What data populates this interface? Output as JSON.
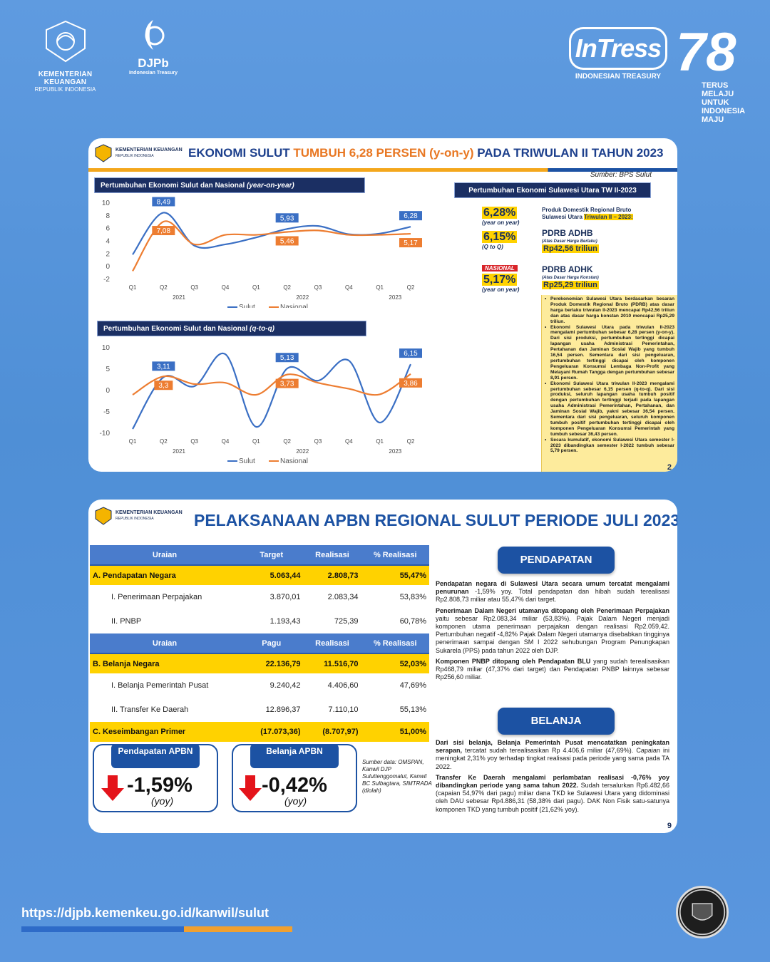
{
  "header": {
    "kemenkeu_line1": "KEMENTERIAN KEUANGAN",
    "kemenkeu_line2": "REPUBLIK INDONESIA",
    "djpb": "DJPb",
    "djpb_sub": "Indonesian Treasury",
    "intress": "InTress",
    "intress_sub": "INDONESIAN TREASURY",
    "ri_number": "78",
    "ri_tagline": [
      "TERUS",
      "MELAJU",
      "UNTUK",
      "INDONESIA",
      "MAJU"
    ]
  },
  "slide1": {
    "logo_line1": "KEMENTERIAN KEUANGAN",
    "logo_line2": "REPUBLIK INDONESIA",
    "title_a": "EKONOMI SULUT ",
    "title_b": "TUMBUH 6,28 PERSEN (y-on-y)",
    "title_c": " PADA TRIWULAN II TAHUN 2023",
    "source": "Sumber: BPS Sulut",
    "chart1_title_a": "Pertumbuhan Ekonomi Sulut dan Nasional ",
    "chart1_title_b": "(year-on-year)",
    "chart2_title_a": "Pertumbuhan Ekonomi Sulut dan Nasional ",
    "chart2_title_b": "(q-to-q)",
    "right_title": "Pertumbuhan Ekonomi Sulawesi Utara TW II-2023",
    "kpi1_value": "6,28%",
    "kpi1_sub": "(year on year)",
    "kpi2_value": "6,15%",
    "kpi2_sub": "(Q to Q)",
    "kpi3_tag": "NASIONAL",
    "kpi3_value": "5,17%",
    "kpi3_sub": "(year on year)",
    "pdrb_intro_a": "Produk Domestik Regional Bruto Sulawesi Utara ",
    "pdrb_intro_b": "Triwulan II – 2023:",
    "adhb_title": "PDRB ADHB",
    "adhb_note": "(Atas Dasar Harga Berlaku)",
    "adhb_value": "Rp42,56 triliun",
    "adhk_title": "PDRB ADHK",
    "adhk_note": "(Atas Dasar Harga Konstan)",
    "adhk_value": "Rp25,29 triliun",
    "bullets": [
      "Perekonomian Sulawesi Utara berdasarkan besaran Produk Domestik Regional Bruto (PDRB) atas dasar harga berlaku triwulan II-2023 mencapai Rp42,56 triliun dan atas dasar harga konstan 2010 mencapai Rp25,29 triliun.",
      "Ekonomi Sulawesi Utara pada triwulan II-2023 mengalami pertumbuhan sebesar 6,28 persen (y-on-y). Dari sisi produksi, pertumbuhan tertinggi dicapai lapangan usaha Administrasi Pemerintahan, Pertahanan dan Jaminan Sosial Wajib yang tumbuh 16,54 persen. Sementara dari sisi pengeluaran, pertumbuhan tertinggi dicapai oleh komponen Pengeluaran Konsumsi Lembaga Non-Profit yang Melayani Rumah Tangga dengan pertumbuhan sebesar 8,91 persen.",
      "Ekonomi Sulawesi Utara triwulan II-2023 mengalami pertumbuhan sebesar 6,15 persen (q-to-q). Dari sisi produksi, seluruh lapangan usaha tumbuh positif dengan pertumbuhan tertinggi terjadi pada lapangan usaha Administrasi Pemerintahan, Pertahanan, dan Jaminan Sosial Wajib, yakni sebesar 36,54 persen. Sementara dari sisi pengeluaran, seluruh komponen tumbuh positif pertumbuhan tertinggi dicapai oleh komponen Pengeluaran Konsumsi Pemerintah yang tumbuh sebesar 36,43 persen.",
      "Secara kumulatif, ekonomi Sulawesi Utara semester I-2023 dibandingkan semester I-2022 tumbuh sebesar 5,79 persen."
    ],
    "page": "2"
  },
  "chart_data": [
    {
      "type": "line",
      "title": "Pertumbuhan Ekonomi Sulut dan Nasional (year-on-year)",
      "categories": [
        "Q1",
        "Q2",
        "Q3",
        "Q4",
        "Q1",
        "Q2",
        "Q3",
        "Q4",
        "Q1",
        "Q2"
      ],
      "years": [
        "2021",
        "2022",
        "2023"
      ],
      "ylim": [
        -2,
        10
      ],
      "yticks": [
        10,
        8,
        6,
        4,
        2,
        0,
        -2
      ],
      "series": [
        {
          "name": "Sulut",
          "color": "#3a6fc4",
          "values": [
            1.9,
            8.49,
            3.3,
            3.5,
            4.6,
            5.93,
            6.4,
            5.1,
            5.2,
            6.28
          ],
          "labels": {
            "1": "8,49",
            "5": "5,93",
            "9": "6,28"
          }
        },
        {
          "name": "Nasional",
          "color": "#ed7d31",
          "values": [
            -0.7,
            7.08,
            3.5,
            5.0,
            5.0,
            5.46,
            5.7,
            5.0,
            5.0,
            5.17
          ],
          "labels": {
            "1": "7,08",
            "5": "5,46",
            "9": "5,17"
          }
        }
      ]
    },
    {
      "type": "line",
      "title": "Pertumbuhan Ekonomi Sulut dan Nasional (q-to-q)",
      "categories": [
        "Q1",
        "Q2",
        "Q3",
        "Q4",
        "Q1",
        "Q2",
        "Q3",
        "Q4",
        "Q1",
        "Q2"
      ],
      "years": [
        "2021",
        "2022",
        "2023"
      ],
      "ylim": [
        -10,
        10
      ],
      "yticks": [
        10,
        5,
        0,
        -5,
        -10
      ],
      "series": [
        {
          "name": "Sulut",
          "color": "#3a6fc4",
          "values": [
            -9,
            3.11,
            1.0,
            8.5,
            -8.5,
            5.13,
            2.3,
            7.0,
            -7.5,
            6.15
          ],
          "labels": {
            "1": "3,11",
            "5": "5,13",
            "9": "6,15"
          }
        },
        {
          "name": "Nasional",
          "color": "#ed7d31",
          "values": [
            -1.0,
            3.3,
            1.5,
            1.8,
            -1.0,
            3.73,
            1.8,
            0.4,
            -0.9,
            3.86
          ],
          "labels": {
            "1": "3,3",
            "5": "3,73",
            "9": "3,86"
          }
        }
      ]
    }
  ],
  "slide2": {
    "logo_line1": "KEMENTERIAN KEUANGAN",
    "logo_line2": "REPUBLIK INDONESIA",
    "title": "PELAKSANAAN APBN REGIONAL SULUT PERIODE JULI 2023",
    "table1_head": [
      "Uraian",
      "Target",
      "Realisasi",
      "% Realisasi"
    ],
    "rows1": [
      {
        "kind": "sec",
        "cells": [
          "A. Pendapatan Negara",
          "5.063,44",
          "2.808,73",
          "55,47%"
        ]
      },
      {
        "kind": "row",
        "cells": [
          "I. Penerimaan Perpajakan",
          "3.870,01",
          "2.083,34",
          "53,83%"
        ]
      },
      {
        "kind": "row",
        "cells": [
          "II. PNBP",
          "1.193,43",
          "725,39",
          "60,78%"
        ]
      }
    ],
    "table2_head": [
      "Uraian",
      "Pagu",
      "Realisasi",
      "% Realisasi"
    ],
    "rows2": [
      {
        "kind": "sec",
        "cells": [
          "B. Belanja Negara",
          "22.136,79",
          "11.516,70",
          "52,03%"
        ]
      },
      {
        "kind": "row",
        "cells": [
          "I. Belanja Pemerintah Pusat",
          "9.240,42",
          "4.406,60",
          "47,69%"
        ]
      },
      {
        "kind": "row",
        "cells": [
          "II. Transfer Ke Daerah",
          "12.896,37",
          "7.110,10",
          "55,13%"
        ]
      },
      {
        "kind": "sec",
        "cells": [
          "C. Keseimbangan Primer",
          "(17.073,36)",
          "(8.707,97)",
          "51,00%"
        ]
      }
    ],
    "stat1_label": "Pendapatan APBN",
    "stat1_value": "-1,59%",
    "stat1_yoy": "(yoy)",
    "stat2_label": "Belanja APBN",
    "stat2_value": "-0,42%",
    "stat2_yoy": "(yoy)",
    "source": "Sumber data: OMSPAN, Kanwil DJP Suluttenggomalut, Kanwil BC Sulbagtara, SIMTRADA (diolah)",
    "pendapatan_label": "PENDAPATAN",
    "belanja_label": "BELANJA",
    "p1_bold": "Pendapatan negara di Sulawesi Utara secara umum tercatat mengalami penurunan",
    "p1_rest": " -1,59% yoy. Total pendapatan dan hibah sudah terealisasi Rp2.808,73 miliar atau 55,47% dari target.",
    "p2_bold": "Penerimaan Dalam Negeri utamanya ditopang oleh Penerimaan Perpajakan",
    "p2_rest": " yaitu sebesar Rp2.083,34 miliar (53,83%). Pajak Dalam Negeri menjadi komponen utama penerimaan perpajakan dengan realisasi Rp2.059,42. Pertumbuhan negatif -4,82% Pajak Dalam Negeri utamanya disebabkan tingginya penerimaan sampai dengan SM I 2022 sehubungan Program Penungkapan Sukarela (PPS) pada tahun 2022 oleh DJP.",
    "p3_bold": "Komponen PNBP ditopang oleh Pendapatan BLU",
    "p3_rest": " yang sudah terealisasikan Rp468,79 miliar (47,37% dari target) dan Pendapatan PNBP lainnya sebesar Rp256,60 miliar.",
    "b1_bold": "Dari sisi belanja, Belanja Pemerintah Pusat mencatatkan peningkatan serapan,",
    "b1_rest": " tercatat sudah terealisasikan Rp 4.406,6 miliar (47,69%). Capaian ini meningkat 2,31% yoy terhadap tingkat realisasi pada periode yang sama pada TA 2022.",
    "b2_bold": "Transfer Ke Daerah mengalami perlambatan realisasi -0,76% yoy dibandingkan periode yang sama tahun 2022.",
    "b2_rest": " Sudah tersalurkan Rp6.482,66 (capaian 54,97% dari pagu) miliar dana TKD ke Sulawesi Utara yang didominasi oleh DAU sebesar Rp4.886,31 (58,38% dari pagu). DAK Non Fisik satu-satunya komponen TKD yang tumbuh positif (21,62% yoy).",
    "page": "9"
  },
  "footer": {
    "url": "https://djpb.kemenkeu.go.id/kanwil/sulut"
  }
}
